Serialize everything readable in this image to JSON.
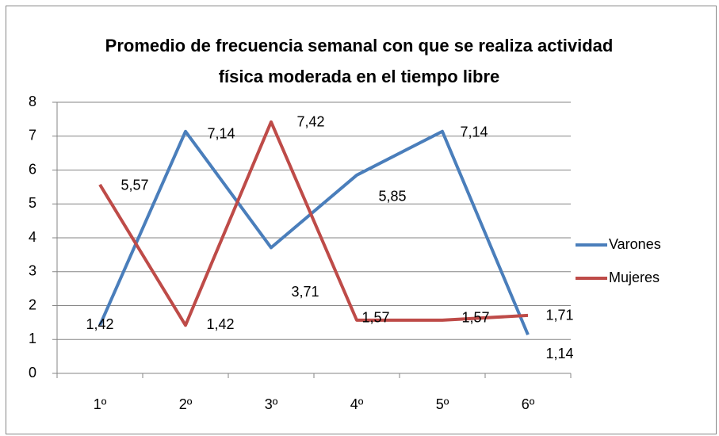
{
  "chart_data": {
    "type": "line",
    "title": "Promedio de frecuencia semanal con que se realiza actividad física moderada en el tiempo libre",
    "categories": [
      "1º",
      "2º",
      "3º",
      "4º",
      "5º",
      "6º"
    ],
    "series": [
      {
        "name": "Varones",
        "color": "#4a7ebb",
        "values": [
          1.42,
          7.14,
          3.71,
          5.85,
          7.14,
          1.14
        ],
        "value_labels": [
          "1,42",
          "7,14",
          "3,71",
          "5,85",
          "7,14",
          "1,14"
        ]
      },
      {
        "name": "Mujeres",
        "color": "#be4b48",
        "values": [
          5.57,
          1.42,
          7.42,
          1.57,
          1.57,
          1.71
        ],
        "value_labels": [
          "5,57",
          "1,42",
          "7,42",
          "1,57",
          "1,57",
          "1,71"
        ]
      }
    ],
    "ylim": [
      0,
      8
    ],
    "yticks": [
      0,
      1,
      2,
      3,
      4,
      5,
      6,
      7,
      8
    ],
    "grid": true,
    "legend": "right"
  }
}
